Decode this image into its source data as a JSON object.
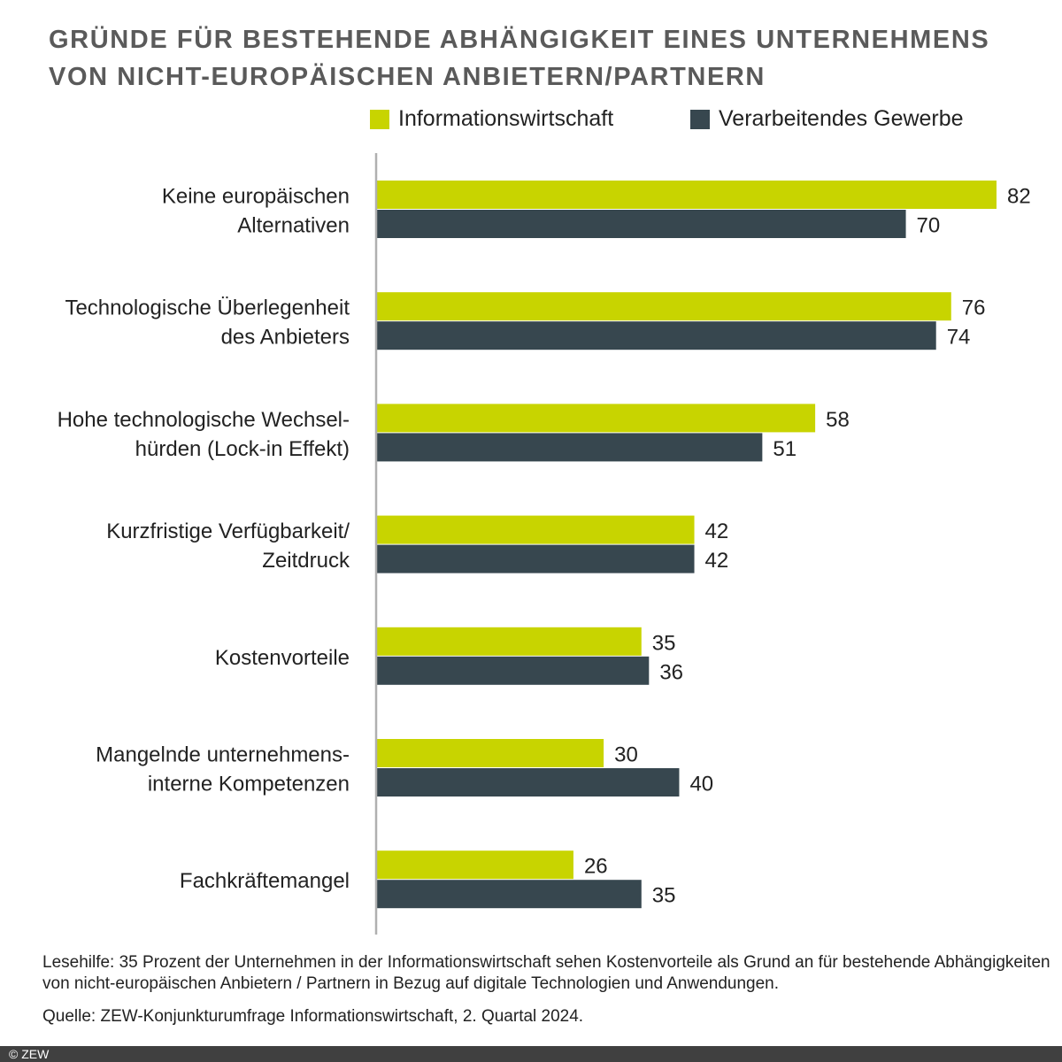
{
  "chart_data": {
    "type": "bar",
    "orientation": "horizontal",
    "title": "GRÜNDE FÜR BESTEHENDE ABHÄNGIGKEIT EINES UNTERNEHMENS VON NICHT-EUROPÄISCHEN ANBIETERN/PARTNERN",
    "categories": [
      [
        "Keine europäischen",
        "Alternativen"
      ],
      [
        "Technologische Überlegenheit",
        "des Anbieters"
      ],
      [
        "Hohe technologische Wechsel-",
        "hürden (Lock-in Effekt)"
      ],
      [
        "Kurzfristige Verfügbarkeit/",
        "Zeitdruck"
      ],
      [
        "Kostenvorteile"
      ],
      [
        "Mangelnde unternehmens-",
        "interne Kompetenzen"
      ],
      [
        "Fachkräftemangel"
      ]
    ],
    "series": [
      {
        "name": "Informationswirtschaft",
        "color": "#c8d400",
        "values": [
          82,
          76,
          58,
          42,
          35,
          30,
          26
        ]
      },
      {
        "name": "Verarbeitendes Gewerbe",
        "color": "#37474f",
        "values": [
          70,
          74,
          51,
          42,
          36,
          40,
          35
        ]
      }
    ],
    "xlim": [
      0,
      82
    ],
    "grid": false,
    "data_labels": true,
    "legend_position": "top-right"
  },
  "notes": {
    "lesehilfe": "Lesehilfe: 35 Prozent der Unternehmen in der Informationswirtschaft sehen Kostenvorteile als Grund an für bestehende Abhängigkeiten von nicht-europäischen Anbietern / Partnern in Bezug auf digitale Technologien und Anwendungen.",
    "quelle": "Quelle: ZEW-Konjunkturumfrage Informationswirtschaft, 2. Quartal 2024."
  },
  "footer": {
    "copyright": "© ZEW"
  }
}
